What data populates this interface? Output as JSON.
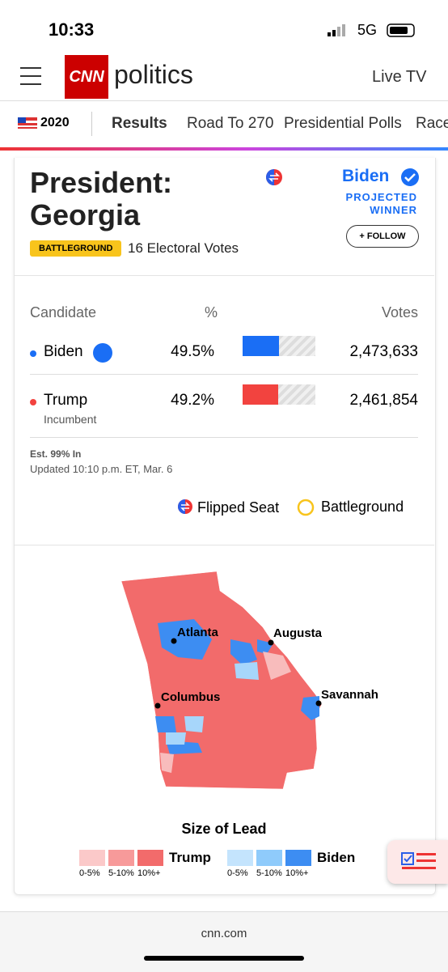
{
  "status": {
    "time": "10:33",
    "network": "5G"
  },
  "header": {
    "logo": "CNN",
    "section": "politics",
    "live": "Live TV"
  },
  "nav": {
    "year": "2020",
    "items": [
      "Results",
      "Road To 270",
      "Presidential Polls",
      "Race"
    ]
  },
  "card": {
    "title": [
      "President:",
      "Georgia"
    ],
    "winner": "Biden",
    "projected": [
      "PROJECTED",
      "WINNER"
    ],
    "badge": "BATTLEGROUND",
    "electoral": "16 Electoral Votes",
    "follow": "+ FOLLOW"
  },
  "table": {
    "headers": [
      "Candidate",
      "%",
      "Votes"
    ],
    "rows": [
      {
        "name": "Biden",
        "pct": 49.5,
        "pct_label": "49.5%",
        "votes": "2,473,633",
        "color": "#1a6ef5"
      },
      {
        "name": "Trump",
        "note": "Incumbent",
        "pct": 49.2,
        "pct_label": "49.2%",
        "votes": "2,461,854",
        "color": "#f2433f"
      }
    ]
  },
  "footnote": {
    "estimate": "Est. 99% In",
    "updated": "Updated 10:10 p.m. ET, Mar. 6"
  },
  "legend": {
    "flipped": "Flipped Seat",
    "battleground": "Battleground"
  },
  "map": {
    "cities": [
      "Atlanta",
      "Augusta",
      "Columbus",
      "Savannah"
    ],
    "lead": {
      "title": "Size of Lead",
      "trump": "Trump",
      "biden": "Biden",
      "ranges": [
        "0-5%",
        "5-10%",
        "10%+"
      ]
    }
  },
  "footer": {
    "url": "cnn.com"
  }
}
